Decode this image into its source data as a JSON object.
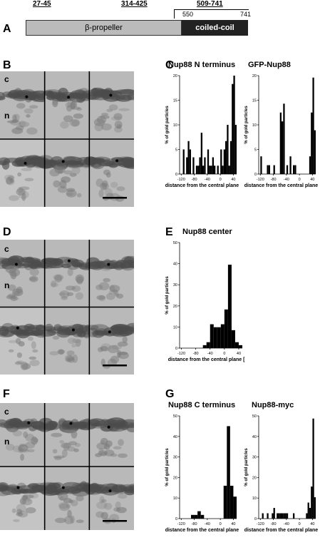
{
  "panel_a": {
    "letter": "A",
    "ranges": [
      {
        "label": "27-45"
      },
      {
        "label": "314-425"
      },
      {
        "label": "509-741"
      }
    ],
    "pos_start": "550",
    "pos_end": "741",
    "domains": [
      {
        "label": "β-propeller",
        "color": "#bbbbbb"
      },
      {
        "label": "coiled-coil",
        "color": "#222222"
      }
    ]
  },
  "panel_letters": {
    "b": "B",
    "c": "C",
    "d": "D",
    "e": "E",
    "f": "F",
    "g": "G"
  },
  "side_labels": {
    "cyto": "c",
    "nuc": "n"
  },
  "chart_data": [
    {
      "type": "bar",
      "title": "Nup88 N terminus",
      "xlabel": "distance from the central plane [nm]",
      "ylabel": "% of gold particles",
      "xlim": [
        -125,
        50
      ],
      "ylim": [
        0,
        20
      ],
      "xticks": [
        -120,
        -80,
        -40,
        0,
        40
      ],
      "yticks": [
        0,
        5,
        10,
        15,
        20
      ],
      "bin_width": 5,
      "x": [
        -120,
        -115,
        -105,
        -100,
        -95,
        -85,
        -80,
        -75,
        -70,
        -65,
        -60,
        -55,
        -50,
        -45,
        -40,
        -35,
        -30,
        -25,
        -20,
        -15,
        -10,
        -5,
        0,
        5,
        10,
        15,
        20,
        25,
        30,
        35,
        40,
        45
      ],
      "values": [
        0,
        5,
        3.4,
        6.7,
        5,
        3.4,
        0,
        1.7,
        1.7,
        3.4,
        8.4,
        1.7,
        3.4,
        0,
        5,
        1.7,
        1.7,
        3.4,
        1.7,
        0,
        1.7,
        0,
        5,
        1.7,
        5,
        6.7,
        10,
        1.7,
        6.7,
        18.3,
        20,
        10
      ]
    },
    {
      "type": "bar",
      "title": "GFP-Nup88",
      "xlabel": "distance from the central plane [nm]",
      "ylabel": "% of gold particles",
      "xlim": [
        -125,
        50
      ],
      "ylim": [
        0,
        20
      ],
      "xticks": [
        -120,
        -80,
        -40,
        0,
        40
      ],
      "yticks": [
        0,
        5,
        10,
        15,
        20
      ],
      "bin_width": 5,
      "x": [
        -120,
        -115,
        -105,
        -100,
        -95,
        -85,
        -80,
        -75,
        -70,
        -65,
        -60,
        -55,
        -50,
        -45,
        -40,
        -35,
        -30,
        -25,
        -20,
        -15,
        -10,
        -5,
        0,
        5,
        10,
        15,
        20,
        25,
        30,
        35,
        40,
        45
      ],
      "values": [
        3.6,
        0,
        0,
        1.8,
        1.8,
        0,
        1.8,
        0,
        0,
        0,
        12.5,
        10.7,
        14.3,
        0,
        1.8,
        0,
        3.6,
        0,
        1.8,
        1.8,
        0,
        0,
        0,
        0,
        0,
        0,
        0,
        0,
        3.6,
        12.5,
        19.6,
        8.9
      ]
    },
    {
      "type": "bar",
      "title": "Nup88 center",
      "xlabel": "distance from the central plane [nm]",
      "ylabel": "% of gold particles",
      "xlim": [
        -125,
        50
      ],
      "ylim": [
        0,
        50
      ],
      "xticks": [
        -120,
        -80,
        -40,
        0,
        40
      ],
      "yticks": [
        0,
        10,
        20,
        30,
        40,
        50
      ],
      "bin_width": 10,
      "x": [
        -60,
        -50,
        -40,
        -30,
        -20,
        -10,
        0,
        10,
        20,
        30,
        40
      ],
      "values": [
        1.4,
        2.8,
        11.3,
        9.9,
        9.9,
        11.3,
        18.3,
        39.5,
        8.5,
        2.8,
        1.4
      ]
    },
    {
      "type": "bar",
      "title": "Nup88 C terminus",
      "xlabel": "distance from the central plane [nm]",
      "ylabel": "% of gold particles",
      "xlim": [
        -125,
        50
      ],
      "ylim": [
        0,
        50
      ],
      "xticks": [
        -120,
        -80,
        -40,
        0,
        40
      ],
      "yticks": [
        0,
        10,
        20,
        30,
        40,
        50
      ],
      "bin_width": 10,
      "x": [
        -90,
        -80,
        -70,
        -60,
        -50,
        -40,
        -30,
        -20,
        -10,
        0,
        10,
        20,
        30,
        40
      ],
      "values": [
        1.8,
        1.8,
        3.6,
        1.8,
        0,
        0,
        0,
        0,
        0,
        0,
        16,
        45,
        16,
        10.7
      ]
    },
    {
      "type": "bar",
      "title": "Nup88-myc",
      "xlabel": "distance from the central plane [nm]",
      "ylabel": "% of gold particles",
      "xlim": [
        -125,
        50
      ],
      "ylim": [
        0,
        50
      ],
      "xticks": [
        -120,
        -80,
        -40,
        0,
        40
      ],
      "yticks": [
        0,
        10,
        20,
        30,
        40,
        50
      ],
      "bin_width": 5,
      "x": [
        -120,
        -115,
        -110,
        -105,
        -100,
        -95,
        -90,
        -85,
        -80,
        -75,
        -70,
        -65,
        -60,
        -55,
        -50,
        -45,
        -40,
        -35,
        -30,
        -25,
        -20,
        -15,
        -10,
        -5,
        0,
        5,
        10,
        15,
        20,
        25,
        30,
        35,
        40,
        45
      ],
      "values": [
        0,
        2.6,
        0,
        0,
        2.6,
        0,
        0,
        2.6,
        5.2,
        0,
        2.6,
        2.6,
        2.6,
        2.6,
        2.6,
        2.6,
        2.6,
        0,
        0,
        0,
        2.6,
        0,
        0,
        0,
        0,
        0,
        0,
        0,
        2.6,
        7.8,
        5.2,
        15.6,
        48.7,
        10.4
      ]
    }
  ]
}
